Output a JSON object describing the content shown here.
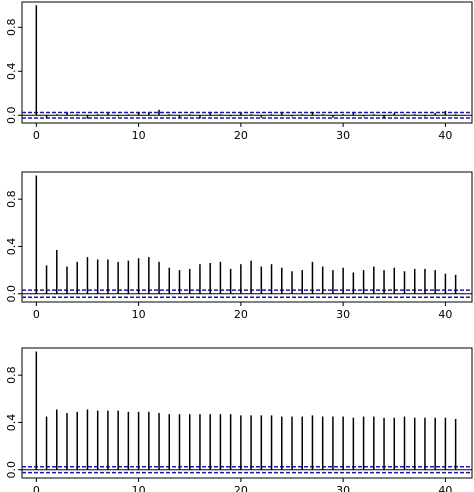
{
  "chart_data": [
    {
      "type": "stem",
      "color": "#000000",
      "ci_color": "#1a1aa6",
      "x": [
        0,
        1,
        2,
        3,
        4,
        5,
        6,
        7,
        8,
        9,
        10,
        11,
        12,
        13,
        14,
        15,
        16,
        17,
        18,
        19,
        20,
        21,
        22,
        23,
        24,
        25,
        26,
        27,
        28,
        29,
        30,
        31,
        32,
        33,
        34,
        35,
        36,
        37,
        38,
        39,
        40,
        41
      ],
      "values": [
        1,
        -0.03,
        0.01,
        0.02,
        0.01,
        -0.03,
        0.01,
        0.02,
        -0.01,
        0.01,
        0.03,
        0.02,
        0.05,
        0.01,
        -0.02,
        0.01,
        -0.03,
        0.02,
        0.01,
        -0.01,
        0.02,
        0.01,
        -0.02,
        0.01,
        0.02,
        -0.01,
        0.01,
        0.03,
        0.01,
        -0.02,
        0.01,
        0.02,
        -0.01,
        0.01,
        -0.03,
        0.02,
        0.01,
        0.01,
        -0.01,
        0.02,
        0.04,
        0.01
      ],
      "ci": [
        -0.025,
        0.025
      ],
      "xlim": [
        -1.4,
        42.6
      ],
      "ylim": [
        -0.07,
        1.03
      ],
      "xticks": [
        0,
        10,
        20,
        30,
        40
      ],
      "yticks": [
        {
          "value": 0,
          "label": "0.0"
        },
        0.4,
        0.8
      ]
    },
    {
      "type": "stem",
      "color": "#000000",
      "ci_color": "#1a1aa6",
      "x": [
        0,
        1,
        2,
        3,
        4,
        5,
        6,
        7,
        8,
        9,
        10,
        11,
        12,
        13,
        14,
        15,
        16,
        17,
        18,
        19,
        20,
        21,
        22,
        23,
        24,
        25,
        26,
        27,
        28,
        29,
        30,
        31,
        32,
        33,
        34,
        35,
        36,
        37,
        38,
        39,
        40,
        41
      ],
      "values": [
        1,
        0.24,
        0.37,
        0.23,
        0.27,
        0.31,
        0.29,
        0.29,
        0.27,
        0.28,
        0.3,
        0.31,
        0.27,
        0.22,
        0.2,
        0.21,
        0.25,
        0.26,
        0.27,
        0.21,
        0.25,
        0.28,
        0.23,
        0.25,
        0.22,
        0.19,
        0.2,
        0.27,
        0.23,
        0.2,
        0.22,
        0.18,
        0.2,
        0.23,
        0.2,
        0.22,
        0.19,
        0.21,
        0.21,
        0.2,
        0.17,
        0.16
      ],
      "ci": [
        -0.03,
        0.03
      ],
      "xlim": [
        -1.4,
        42.6
      ],
      "ylim": [
        -0.07,
        1.03
      ],
      "xticks": [
        0,
        10,
        20,
        30,
        40
      ],
      "yticks": [
        {
          "value": 0,
          "label": "0.0"
        },
        0.4,
        0.8
      ]
    },
    {
      "type": "stem",
      "color": "#000000",
      "ci_color": "#1a1aa6",
      "x": [
        0,
        1,
        2,
        3,
        4,
        5,
        6,
        7,
        8,
        9,
        10,
        11,
        12,
        13,
        14,
        15,
        16,
        17,
        18,
        19,
        20,
        21,
        22,
        23,
        24,
        25,
        26,
        27,
        28,
        29,
        30,
        31,
        32,
        33,
        34,
        35,
        36,
        37,
        38,
        39,
        40,
        41
      ],
      "values": [
        1,
        0.45,
        0.51,
        0.48,
        0.49,
        0.51,
        0.5,
        0.5,
        0.5,
        0.49,
        0.49,
        0.49,
        0.48,
        0.47,
        0.47,
        0.47,
        0.47,
        0.47,
        0.47,
        0.47,
        0.46,
        0.46,
        0.46,
        0.46,
        0.45,
        0.45,
        0.45,
        0.46,
        0.45,
        0.45,
        0.45,
        0.44,
        0.45,
        0.45,
        0.44,
        0.44,
        0.45,
        0.44,
        0.44,
        0.44,
        0.44,
        0.43
      ],
      "ci": [
        -0.025,
        0.025
      ],
      "xlim": [
        -1.4,
        42.6
      ],
      "ylim": [
        -0.07,
        1.03
      ],
      "xticks": [
        0,
        10,
        20,
        30,
        40
      ],
      "yticks": [
        {
          "value": 0,
          "label": "0.0"
        },
        0.4,
        0.8
      ]
    }
  ]
}
